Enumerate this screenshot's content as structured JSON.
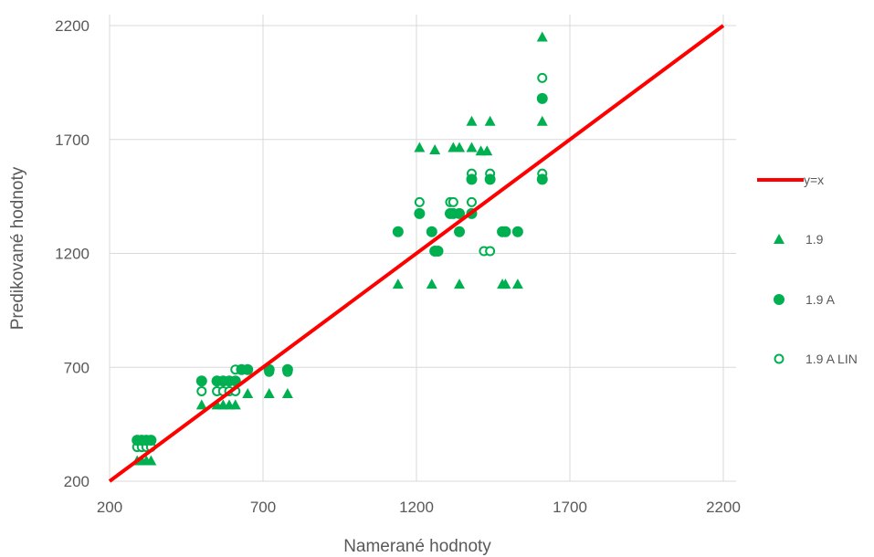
{
  "chart_data": {
    "type": "scatter",
    "xlabel": "Namerané hodnoty",
    "ylabel": "Predikované hodnoty",
    "xlim": [
      200,
      2200
    ],
    "ylim": [
      200,
      2200
    ],
    "xticks": [
      200,
      700,
      1200,
      1700,
      2200
    ],
    "yticks": [
      200,
      700,
      1200,
      1700,
      2200
    ],
    "grid": true,
    "legend_position": "right",
    "colors": {
      "line": "#ff0000",
      "markers": "#00b050"
    },
    "series": [
      {
        "name": "y=x",
        "kind": "line",
        "points": [
          [
            200,
            200
          ],
          [
            2200,
            2200
          ]
        ]
      },
      {
        "name": "1.9",
        "marker": "triangle",
        "points": [
          [
            290,
            290
          ],
          [
            305,
            290
          ],
          [
            320,
            290
          ],
          [
            335,
            290
          ],
          [
            500,
            535
          ],
          [
            550,
            535
          ],
          [
            570,
            535
          ],
          [
            590,
            535
          ],
          [
            610,
            535
          ],
          [
            650,
            585
          ],
          [
            720,
            585
          ],
          [
            780,
            585
          ],
          [
            1140,
            1065
          ],
          [
            1250,
            1065
          ],
          [
            1340,
            1065
          ],
          [
            1480,
            1065
          ],
          [
            1490,
            1065
          ],
          [
            1530,
            1065
          ],
          [
            1210,
            1665
          ],
          [
            1260,
            1655
          ],
          [
            1320,
            1665
          ],
          [
            1340,
            1665
          ],
          [
            1380,
            1665
          ],
          [
            1410,
            1650
          ],
          [
            1430,
            1650
          ],
          [
            1380,
            1780
          ],
          [
            1440,
            1780
          ],
          [
            1610,
            1780
          ],
          [
            1610,
            2150
          ]
        ]
      },
      {
        "name": "1.9 A",
        "marker": "filled-circle",
        "points": [
          [
            290,
            380
          ],
          [
            305,
            380
          ],
          [
            320,
            380
          ],
          [
            335,
            380
          ],
          [
            500,
            640
          ],
          [
            550,
            640
          ],
          [
            570,
            640
          ],
          [
            590,
            640
          ],
          [
            610,
            640
          ],
          [
            630,
            690
          ],
          [
            650,
            690
          ],
          [
            720,
            690
          ],
          [
            780,
            690
          ],
          [
            1140,
            1295
          ],
          [
            1210,
            1375
          ],
          [
            1250,
            1295
          ],
          [
            1260,
            1210
          ],
          [
            1270,
            1210
          ],
          [
            1310,
            1375
          ],
          [
            1320,
            1375
          ],
          [
            1340,
            1375
          ],
          [
            1380,
            1375
          ],
          [
            1340,
            1295
          ],
          [
            1380,
            1525
          ],
          [
            1440,
            1525
          ],
          [
            1480,
            1295
          ],
          [
            1490,
            1295
          ],
          [
            1530,
            1295
          ],
          [
            1610,
            1525
          ],
          [
            1610,
            1880
          ]
        ]
      },
      {
        "name": "1.9 A LIN",
        "marker": "hollow-circle",
        "points": [
          [
            290,
            350
          ],
          [
            305,
            350
          ],
          [
            320,
            350
          ],
          [
            335,
            350
          ],
          [
            500,
            595
          ],
          [
            550,
            595
          ],
          [
            570,
            595
          ],
          [
            590,
            595
          ],
          [
            610,
            595
          ],
          [
            610,
            690
          ],
          [
            630,
            690
          ],
          [
            650,
            690
          ],
          [
            720,
            680
          ],
          [
            780,
            680
          ],
          [
            1140,
            1295
          ],
          [
            1210,
            1425
          ],
          [
            1250,
            1295
          ],
          [
            1260,
            1210
          ],
          [
            1270,
            1210
          ],
          [
            1310,
            1425
          ],
          [
            1320,
            1425
          ],
          [
            1340,
            1295
          ],
          [
            1380,
            1425
          ],
          [
            1380,
            1550
          ],
          [
            1420,
            1210
          ],
          [
            1440,
            1210
          ],
          [
            1440,
            1550
          ],
          [
            1480,
            1295
          ],
          [
            1490,
            1295
          ],
          [
            1530,
            1295
          ],
          [
            1610,
            1550
          ],
          [
            1610,
            1970
          ]
        ]
      }
    ]
  }
}
